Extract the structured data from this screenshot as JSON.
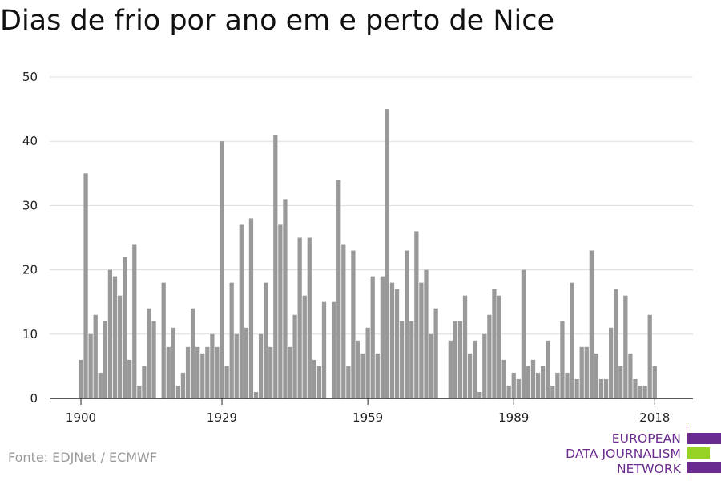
{
  "title": "Dias de frio por ano em e perto de Nice",
  "source": "Fonte: EDJNet / ECMWF",
  "logo": {
    "lines": [
      "EUROPEAN",
      "DATA JOURNALISM",
      "NETWORK"
    ],
    "colors": {
      "purple": "#6b2a8f",
      "green": "#97d327"
    }
  },
  "chart_data": {
    "type": "bar",
    "title": "Dias de frio por ano em e perto de Nice",
    "xlabel": "",
    "ylabel": "",
    "ylim": [
      0,
      50
    ],
    "yticks": [
      0,
      10,
      20,
      30,
      40,
      50
    ],
    "xticks": [
      1900,
      1929,
      1959,
      1989,
      2018
    ],
    "grid": true,
    "bar_color": "#999999",
    "x": [
      1900,
      1901,
      1902,
      1903,
      1904,
      1905,
      1906,
      1907,
      1908,
      1909,
      1910,
      1911,
      1912,
      1913,
      1914,
      1915,
      1916,
      1917,
      1918,
      1919,
      1920,
      1921,
      1922,
      1923,
      1924,
      1925,
      1926,
      1927,
      1928,
      1929,
      1930,
      1931,
      1932,
      1933,
      1934,
      1935,
      1936,
      1937,
      1938,
      1939,
      1940,
      1941,
      1942,
      1943,
      1944,
      1945,
      1946,
      1947,
      1948,
      1949,
      1950,
      1951,
      1952,
      1953,
      1954,
      1955,
      1956,
      1957,
      1958,
      1959,
      1960,
      1961,
      1962,
      1963,
      1964,
      1965,
      1966,
      1967,
      1968,
      1969,
      1970,
      1971,
      1972,
      1973,
      1974,
      1975,
      1976,
      1977,
      1978,
      1979,
      1980,
      1981,
      1982,
      1983,
      1984,
      1985,
      1986,
      1987,
      1988,
      1989,
      1990,
      1991,
      1992,
      1993,
      1994,
      1995,
      1996,
      1997,
      1998,
      1999,
      2000,
      2001,
      2002,
      2003,
      2004,
      2005,
      2006,
      2007,
      2008,
      2009,
      2010,
      2011,
      2012,
      2013,
      2014,
      2015,
      2016,
      2017,
      2018,
      2019
    ],
    "values": [
      6,
      35,
      10,
      13,
      4,
      12,
      20,
      19,
      16,
      22,
      6,
      24,
      2,
      5,
      14,
      12,
      0,
      18,
      8,
      11,
      2,
      4,
      8,
      14,
      8,
      7,
      8,
      10,
      8,
      40,
      5,
      18,
      10,
      27,
      11,
      28,
      1,
      10,
      18,
      8,
      41,
      27,
      31,
      8,
      13,
      25,
      16,
      25,
      6,
      5,
      15,
      0,
      15,
      34,
      24,
      5,
      23,
      9,
      7,
      11,
      19,
      7,
      19,
      45,
      18,
      17,
      12,
      23,
      12,
      26,
      18,
      20,
      10,
      14,
      0,
      0,
      9,
      12,
      12,
      16,
      7,
      9,
      1,
      10,
      13,
      17,
      16,
      6,
      2,
      4,
      3,
      20,
      5,
      6,
      4,
      5,
      9,
      2,
      4,
      12,
      4,
      18,
      3,
      8,
      8,
      23,
      7,
      3,
      3,
      11,
      17,
      5,
      16,
      7,
      3,
      2,
      2,
      13,
      5,
      0
    ]
  }
}
